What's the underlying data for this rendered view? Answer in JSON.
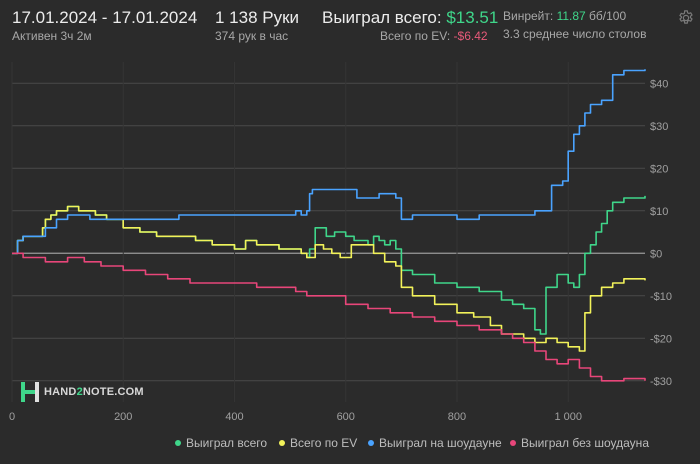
{
  "header": {
    "date_range": "17.01.2024 - 17.01.2024",
    "active": "Активен 3ч 2м",
    "hands": "1 138 Руки",
    "hands_per_hour": "374 рук в час",
    "won_label": "Выиграл всего:",
    "won_value": "$13.51",
    "ev_label": "Всего по EV:",
    "ev_value": "-$6.42",
    "winrate_label": "Винрейт:",
    "winrate_value": "11.87",
    "winrate_unit": "бб/100",
    "tables": "3.3 среднее число столов",
    "settings_icon": "gear-icon"
  },
  "logo": {
    "text_a": "HAND",
    "text_b": "2",
    "text_c": "NOTE.COM"
  },
  "colors": {
    "green": "#3fd68a",
    "yellow": "#f2f25a",
    "blue": "#4aa3ff",
    "pink": "#e8467a",
    "background": "#2b2b2b",
    "grid": "#4a4a4a",
    "zero_line": "#9a9a9a"
  },
  "chart_data": {
    "type": "line",
    "xlim": [
      0,
      1138
    ],
    "ylim": [
      -35,
      45
    ],
    "x_ticks": [
      0,
      200,
      400,
      600,
      800,
      1000
    ],
    "x_tick_labels": [
      "0",
      "200",
      "400",
      "600",
      "800",
      "1 000"
    ],
    "y_ticks": [
      40,
      30,
      20,
      10,
      0,
      -10,
      -20,
      -30
    ],
    "y_tick_labels": [
      "$40",
      "$30",
      "$20",
      "$10",
      "$0",
      "-$10",
      "-$20",
      "-$30"
    ],
    "grid": true,
    "legend_position": "bottom",
    "series": [
      {
        "name": "Выиграл всего",
        "color": "#3fd68a",
        "x": [
          0,
          10,
          20,
          40,
          55,
          60,
          70,
          80,
          100,
          120,
          150,
          170,
          200,
          230,
          260,
          300,
          330,
          360,
          400,
          420,
          440,
          480,
          510,
          520,
          530,
          535,
          545,
          555,
          565,
          580,
          600,
          615,
          630,
          640,
          650,
          660,
          670,
          680,
          690,
          700,
          720,
          760,
          800,
          840,
          880,
          900,
          920,
          940,
          950,
          960,
          980,
          1000,
          1010,
          1020,
          1030,
          1040,
          1050,
          1060,
          1070,
          1080,
          1100,
          1138
        ],
        "y": [
          0,
          3,
          4,
          4,
          6,
          8,
          9,
          10,
          11,
          10,
          9,
          8,
          6,
          5,
          4,
          4,
          3,
          2,
          1,
          3,
          2,
          1,
          1,
          0,
          -1,
          1,
          6,
          6,
          4,
          5,
          4,
          3,
          3,
          2,
          4,
          3,
          2,
          3,
          1,
          -4,
          -5,
          -7,
          -8,
          -9,
          -11,
          -12,
          -13,
          -18,
          -19,
          -8,
          -5,
          -7,
          -8,
          -5,
          0,
          2,
          5,
          7,
          10,
          12,
          13,
          13.5
        ]
      },
      {
        "name": "Всего по EV",
        "color": "#f2f25a",
        "x": [
          0,
          10,
          20,
          40,
          55,
          60,
          70,
          80,
          100,
          120,
          150,
          170,
          200,
          230,
          260,
          300,
          330,
          360,
          400,
          420,
          440,
          480,
          510,
          520,
          530,
          545,
          560,
          575,
          590,
          610,
          630,
          650,
          670,
          690,
          700,
          720,
          760,
          800,
          830,
          860,
          880,
          900,
          920,
          940,
          960,
          980,
          1000,
          1020,
          1030,
          1040,
          1060,
          1080,
          1100,
          1138
        ],
        "y": [
          0,
          3,
          4,
          4,
          6,
          8,
          9,
          10,
          11,
          10,
          9,
          8,
          6,
          5,
          4,
          4,
          3,
          2,
          1,
          3,
          2,
          1,
          1,
          0,
          -1,
          2,
          1,
          0,
          -1,
          2,
          2,
          0,
          -2,
          -3,
          -8,
          -10,
          -12,
          -14,
          -15,
          -17,
          -19,
          -19,
          -20,
          -21,
          -20,
          -21,
          -22,
          -23,
          -14,
          -10,
          -8,
          -7,
          -6,
          -6.4
        ]
      },
      {
        "name": "Выиграл на шоудауне",
        "color": "#4aa3ff",
        "x": [
          0,
          10,
          20,
          40,
          60,
          80,
          100,
          120,
          140,
          180,
          220,
          260,
          300,
          360,
          420,
          480,
          510,
          520,
          530,
          535,
          540,
          580,
          620,
          660,
          690,
          700,
          720,
          760,
          800,
          840,
          880,
          900,
          920,
          940,
          960,
          970,
          990,
          1000,
          1010,
          1020,
          1030,
          1040,
          1060,
          1080,
          1100,
          1138
        ],
        "y": [
          0,
          3,
          4,
          4,
          6,
          8,
          9,
          9,
          8,
          8,
          8,
          8,
          9,
          9,
          9,
          9,
          10,
          9,
          10,
          14,
          15,
          15,
          13,
          14,
          13,
          8,
          9,
          9,
          8,
          9,
          9,
          9,
          9,
          10,
          10,
          16,
          17,
          24,
          28,
          30,
          33,
          35,
          36,
          42,
          43,
          43.3
        ]
      },
      {
        "name": "Выиграл без шоудауна",
        "color": "#e8467a",
        "x": [
          0,
          20,
          40,
          60,
          100,
          130,
          160,
          200,
          240,
          280,
          320,
          360,
          400,
          440,
          480,
          510,
          530,
          560,
          600,
          640,
          680,
          700,
          720,
          760,
          800,
          840,
          880,
          900,
          920,
          940,
          960,
          980,
          1000,
          1020,
          1040,
          1060,
          1080,
          1100,
          1138
        ],
        "y": [
          0,
          -1,
          -1,
          -2,
          -1,
          -2,
          -3,
          -4,
          -5,
          -6,
          -7,
          -7,
          -7,
          -8,
          -8,
          -9,
          -10,
          -10,
          -12,
          -13,
          -14,
          -14,
          -15,
          -16,
          -17,
          -18,
          -19,
          -20,
          -21,
          -23,
          -25,
          -26,
          -25,
          -27,
          -29,
          -30,
          -30,
          -29.5,
          -30
        ]
      }
    ]
  }
}
